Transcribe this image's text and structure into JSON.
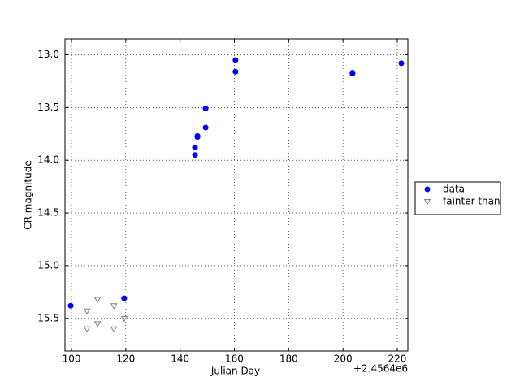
{
  "chart_data": {
    "type": "scatter",
    "xlabel": "Julian Day",
    "ylabel": "CR magnitude",
    "x_offset_label": "+2.4564e6",
    "xlim": [
      97.6,
      223.9
    ],
    "ylim": [
      15.81,
      12.85
    ],
    "xticks": [
      100,
      120,
      140,
      160,
      180,
      200,
      220
    ],
    "yticks": [
      {
        "value": 13,
        "label": "13.0"
      },
      {
        "value": 13.5,
        "label": "13.5"
      },
      {
        "value": 14,
        "label": "14.0"
      },
      {
        "value": 14.5,
        "label": "14.5"
      },
      {
        "value": 15,
        "label": "15.0"
      },
      {
        "value": 15.5,
        "label": "15.5"
      }
    ],
    "grid": true,
    "legend": "outside right",
    "series": [
      {
        "name": "data",
        "color": "#0000ff",
        "marker": "circle",
        "x": [
          99.7,
          119.4,
          145.5,
          145.5,
          146.4,
          146.4,
          149.4,
          149.4,
          160.4,
          160.4,
          203.5,
          203.5,
          221.5
        ],
        "values": [
          15.38,
          15.31,
          13.88,
          13.95,
          13.77,
          13.78,
          13.69,
          13.51,
          13.05,
          13.16,
          13.17,
          13.18,
          13.08
        ]
      },
      {
        "name": "fainter than",
        "color": "#808080",
        "marker": "triangle-down",
        "x": [
          105.7,
          105.7,
          109.6,
          109.6,
          115.6,
          115.6,
          119.4
        ],
        "values": [
          15.43,
          15.6,
          15.32,
          15.55,
          15.38,
          15.6,
          15.5
        ]
      }
    ]
  }
}
